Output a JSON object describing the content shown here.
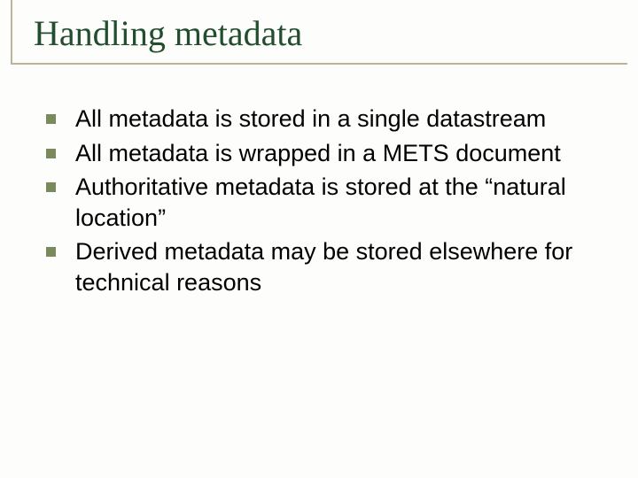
{
  "slide": {
    "title": "Handling metadata",
    "title_color": "#224d2e",
    "border_color": "#b9b49a",
    "bullet_color": "#7a8a5c",
    "background_color": "#fdfdfb",
    "bullets": [
      "All metadata is stored in a single datastream",
      "All metadata is wrapped in a METS document",
      "Authoritative metadata is stored at the “natural location”",
      "Derived metadata may be stored elsewhere for technical reasons"
    ]
  }
}
